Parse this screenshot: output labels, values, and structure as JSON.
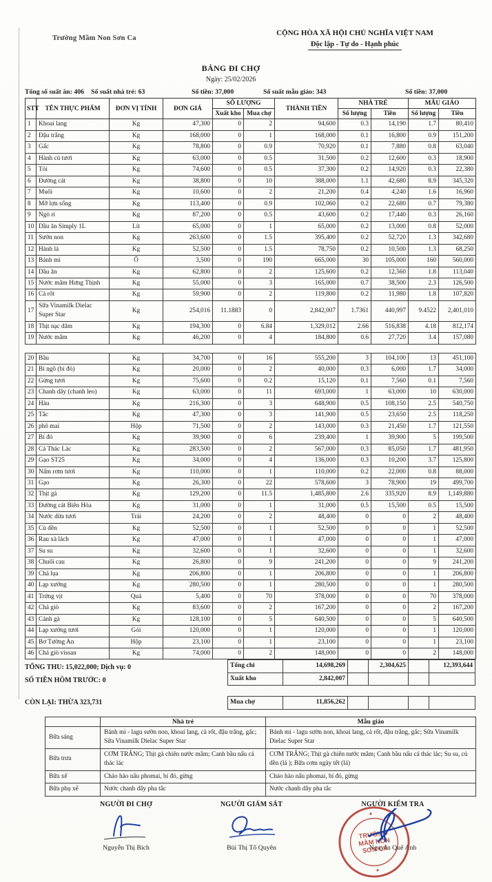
{
  "header": {
    "school": "Trường Mầm Non Sơn Ca",
    "national_title": "CỘNG HÒA XÃ HỘI CHỦ NGHĨA VIỆT NAM",
    "national_subtitle": "Độc lập - Tự do - Hạnh phúc",
    "doc_title": "BẢNG ĐI CHỢ",
    "date_line": "Ngày: 25/02/2026",
    "stats": [
      "Tổng số suất ăn: 406",
      "Số suất nhà trẻ: 63",
      "Số tiền: 37,000",
      "Số suất mẫu giáo: 343",
      "Số tiền: 37,000"
    ]
  },
  "table": {
    "headers": {
      "stt": "STT",
      "name": "TÊN THỰC PHẨM",
      "unit": "ĐƠN VỊ TÍNH",
      "price": "ĐƠN GIÁ",
      "qty_group": "SỐ LƯỢNG",
      "qty_out": "Xuất kho",
      "qty_buy": "Mua chợ",
      "total": "THÀNH TIỀN",
      "nursery_group": "NHÀ TRẺ",
      "kindergarten_group": "MẪU GIÁO",
      "qty": "Số lượng",
      "money": "Tiền"
    },
    "split_after": 19,
    "rows": [
      [
        "1",
        "Khoai lang",
        "Kg",
        "47,300",
        "0",
        "2",
        "94,600",
        "0.3",
        "14,190",
        "1.7",
        "80,410"
      ],
      [
        "2",
        "Đậu trắng",
        "Kg",
        "168,000",
        "0",
        "1",
        "168,000",
        "0.1",
        "16,800",
        "0.9",
        "151,200"
      ],
      [
        "3",
        "Gấc",
        "Kg",
        "78,800",
        "0",
        "0.9",
        "70,920",
        "0.1",
        "7,880",
        "0.8",
        "63,040"
      ],
      [
        "4",
        "Hành củ tươi",
        "Kg",
        "63,000",
        "0",
        "0.5",
        "31,500",
        "0.2",
        "12,600",
        "0.3",
        "18,900"
      ],
      [
        "5",
        "Tỏi",
        "Kg",
        "74,600",
        "0",
        "0.5",
        "37,300",
        "0.2",
        "14,920",
        "0.3",
        "22,380"
      ],
      [
        "6",
        "Đường cát",
        "Kg",
        "38,800",
        "0",
        "10",
        "388,000",
        "1.1",
        "42,680",
        "8.9",
        "345,320"
      ],
      [
        "7",
        "Muối",
        "Kg",
        "10,600",
        "0",
        "2",
        "21,200",
        "0.4",
        "4,240",
        "1.6",
        "16,960"
      ],
      [
        "8",
        "Mỡ lợn sống",
        "Kg",
        "113,400",
        "0",
        "0.9",
        "102,060",
        "0.2",
        "22,680",
        "0.7",
        "79,380"
      ],
      [
        "9",
        "Ngò rí",
        "Kg",
        "87,200",
        "0",
        "0.5",
        "43,600",
        "0.2",
        "17,440",
        "0.3",
        "26,160"
      ],
      [
        "10",
        "Dầu ăn Simply 1L",
        "Lít",
        "65,000",
        "0",
        "1",
        "65,000",
        "0.2",
        "13,000",
        "0.8",
        "52,000"
      ],
      [
        "11",
        "Sườn non",
        "Kg",
        "263,600",
        "0",
        "1.5",
        "395,400",
        "0.2",
        "52,720",
        "1.3",
        "342,680"
      ],
      [
        "12",
        "Hành lá",
        "Kg",
        "52,500",
        "0",
        "1.5",
        "78,750",
        "0.2",
        "10,500",
        "1.3",
        "68,250"
      ],
      [
        "13",
        "Bánh mì",
        "Ổ",
        "3,500",
        "0",
        "190",
        "665,000",
        "30",
        "105,000",
        "160",
        "560,000"
      ],
      [
        "14",
        "Dầu ăn",
        "Kg",
        "62,800",
        "0",
        "2",
        "125,600",
        "0.2",
        "12,560",
        "1.8",
        "113,040"
      ],
      [
        "15",
        "Nước mắm Hưng Thịnh",
        "Kg",
        "55,000",
        "0",
        "3",
        "165,000",
        "0.7",
        "38,500",
        "2.3",
        "126,500"
      ],
      [
        "16",
        "Cà rốt",
        "Kg",
        "59,900",
        "0",
        "2",
        "119,800",
        "0.2",
        "11,980",
        "1.8",
        "107,820"
      ],
      [
        "17",
        "Sữa Vinamilk Dielac Super Star",
        "Kg",
        "254,016",
        "11.1883",
        "0",
        "2,842,007",
        "1.7361",
        "440,997",
        "9.4522",
        "2,401,010"
      ],
      [
        "18",
        "Thịt nạc dăm",
        "Kg",
        "194,300",
        "0",
        "6.84",
        "1,329,012",
        "2.66",
        "516,838",
        "4.18",
        "812,174"
      ],
      [
        "19",
        "Nước mắm",
        "Kg",
        "46,200",
        "0",
        "4",
        "184,800",
        "0.6",
        "27,720",
        "3.4",
        "157,080"
      ],
      [
        "20",
        "Bầu",
        "Kg",
        "34,700",
        "0",
        "16",
        "555,200",
        "3",
        "104,100",
        "13",
        "451,100"
      ],
      [
        "21",
        "Bí ngô (bí đỏ)",
        "Kg",
        "20,000",
        "0",
        "2",
        "40,000",
        "0.3",
        "6,000",
        "1.7",
        "34,000"
      ],
      [
        "22",
        "Gừng tươi",
        "Kg",
        "75,600",
        "0",
        "0.2",
        "15,120",
        "0.1",
        "7,560",
        "0.1",
        "7,560"
      ],
      [
        "23",
        "Chanh dây (chanh leo)",
        "Kg",
        "63,000",
        "0",
        "11",
        "693,000",
        "1",
        "63,000",
        "10",
        "630,000"
      ],
      [
        "24",
        "Hàu",
        "Kg",
        "216,300",
        "0",
        "3",
        "648,900",
        "0.5",
        "108,150",
        "2.5",
        "540,750"
      ],
      [
        "25",
        "Tắc",
        "Kg",
        "47,300",
        "0",
        "3",
        "141,900",
        "0.5",
        "23,650",
        "2.5",
        "118,250"
      ],
      [
        "26",
        "phô mai",
        "Hộp",
        "71,500",
        "0",
        "2",
        "143,000",
        "0.3",
        "21,450",
        "1.7",
        "121,550"
      ],
      [
        "27",
        "Bí đỏ",
        "Kg",
        "39,900",
        "0",
        "6",
        "239,400",
        "1",
        "39,900",
        "5",
        "199,500"
      ],
      [
        "28",
        "Cá Thác Lác",
        "Kg",
        "283,500",
        "0",
        "2",
        "567,000",
        "0.3",
        "85,050",
        "1.7",
        "481,950"
      ],
      [
        "29",
        "Gạo ST25",
        "Kg",
        "34,000",
        "0",
        "4",
        "136,000",
        "0.3",
        "10,200",
        "3.7",
        "125,800"
      ],
      [
        "30",
        "Nấm rơm tươi",
        "Kg",
        "110,000",
        "0",
        "1",
        "110,000",
        "0.2",
        "22,000",
        "0.8",
        "88,000"
      ],
      [
        "31",
        "Gạo",
        "Kg",
        "26,300",
        "0",
        "22",
        "578,600",
        "3",
        "78,900",
        "19",
        "499,700"
      ],
      [
        "32",
        "Thịt gà",
        "Kg",
        "129,200",
        "0",
        "11.5",
        "1,485,800",
        "2.6",
        "335,920",
        "8.9",
        "1,149,880"
      ],
      [
        "33",
        "Đường cát Biên Hòa",
        "Kg",
        "31,000",
        "0",
        "1",
        "31,000",
        "0.5",
        "15,500",
        "0.5",
        "15,500"
      ],
      [
        "34",
        "Nước dừa tươi",
        "Trái",
        "24,200",
        "0",
        "2",
        "48,400",
        "0",
        "0",
        "2",
        "48,400"
      ],
      [
        "35",
        "Củ dền",
        "Kg",
        "52,500",
        "0",
        "1",
        "52,500",
        "0",
        "0",
        "1",
        "52,500"
      ],
      [
        "36",
        "Rau xà lách",
        "Kg",
        "47,000",
        "0",
        "1",
        "47,000",
        "0",
        "0",
        "1",
        "47,000"
      ],
      [
        "37",
        "Su su",
        "Kg",
        "32,600",
        "0",
        "1",
        "32,600",
        "0",
        "0",
        "1",
        "32,600"
      ],
      [
        "38",
        "Chuối cau",
        "Kg",
        "26,800",
        "0",
        "9",
        "241,200",
        "0",
        "0",
        "9",
        "241,200"
      ],
      [
        "39",
        "Chả lụa",
        "Kg",
        "206,800",
        "0",
        "1",
        "206,800",
        "0",
        "0",
        "1",
        "206,800"
      ],
      [
        "40",
        "Lạp xưởng",
        "Kg",
        "280,500",
        "0",
        "1",
        "280,500",
        "0",
        "0",
        "1",
        "280,500"
      ],
      [
        "41",
        "Trứng vịt",
        "Quả",
        "5,400",
        "0",
        "70",
        "378,000",
        "0",
        "0",
        "70",
        "378,000"
      ],
      [
        "42",
        "Chả giò",
        "Kg",
        "83,600",
        "0",
        "2",
        "167,200",
        "0",
        "0",
        "2",
        "167,200"
      ],
      [
        "43",
        "Cánh gà",
        "Kg",
        "128,100",
        "0",
        "5",
        "640,500",
        "0",
        "0",
        "5",
        "640,500"
      ],
      [
        "44",
        "Lạp xưởng tươi",
        "Gói",
        "120,000",
        "0",
        "1",
        "120,000",
        "0",
        "0",
        "1",
        "120,000"
      ],
      [
        "45",
        "Bơ Tường An",
        "Hộp",
        "23,100",
        "0",
        "1",
        "23,100",
        "0",
        "0",
        "1",
        "23,100"
      ],
      [
        "46",
        "Chả giò vissan",
        "Kg",
        "74,000",
        "0",
        "2",
        "148,000",
        "0",
        "0",
        "2",
        "148,000"
      ]
    ]
  },
  "totals": {
    "left_lines": [
      "TỔNG THU: 15,022,000; Dịch vụ: 0",
      "SỐ TIỀN HÔM TRƯỚC: 0"
    ],
    "remaining": "CÒN LẠI: THỪA 323,731",
    "rows": [
      [
        "Tổng chi",
        "14,698,269",
        "",
        "2,304,625",
        "",
        "12,393,644"
      ],
      [
        "Xuất kho",
        "2,842,007",
        "",
        "",
        "",
        ""
      ]
    ],
    "mua_cho_row": [
      "Mua chợ",
      "11,856,262",
      "",
      "",
      "",
      ""
    ]
  },
  "meals": {
    "col_headers": [
      "Nhà trẻ",
      "Mẫu giáo"
    ],
    "rows": [
      [
        "Bữa sáng",
        "Bánh mì - lagu sườn non, khoai lang, cà rốt, đậu trắng, gấc; Sữa Vinamilk Dielac Super Star",
        "Bánh mì - lagu sườn non, khoai lang, cà rốt, đậu trắng, gấc; Sữa Vinamilk Dielac Super Star"
      ],
      [
        "Bữa trưa",
        "CƠM TRẮNG; Thịt gà chiên nước mắm; Canh bầu nấu cá thác lác",
        "CƠM TRẮNG; Thịt gà chiên nước mắm; Canh bầu nấu cá thác lác; Su su, củ dền (lá ); Bữa cơm ngày tết (lá)"
      ],
      [
        "Bữa xế",
        "Cháo hào nấu phomai, bí đỏ, gừng",
        "Cháo hào nấu phomai, bí đỏ, gừng"
      ],
      [
        "Bữa phụ xế",
        "Nước chanh dây pha tắc",
        "Nước chanh dây pha tắc"
      ]
    ]
  },
  "signatures": [
    {
      "title": "NGƯỜI ĐI CHỢ",
      "name": "Nguyễn Thị Bích"
    },
    {
      "title": "NGƯỜI GIÁM SÁT",
      "name": "Bùi Thị Tố Quyên"
    },
    {
      "title": "NGƯỜI KIỂM TRA",
      "name": "Nguyễn Quế Anh"
    }
  ],
  "stamp": {
    "lines": [
      "TRƯỜNG",
      "MẦM NON",
      "SƠN CA"
    ],
    "color": "#b0392f"
  },
  "colors": {
    "ink": "#1b1b1b",
    "signature_blue": "#1d3e9e",
    "stamp_red": "#b0392f"
  }
}
